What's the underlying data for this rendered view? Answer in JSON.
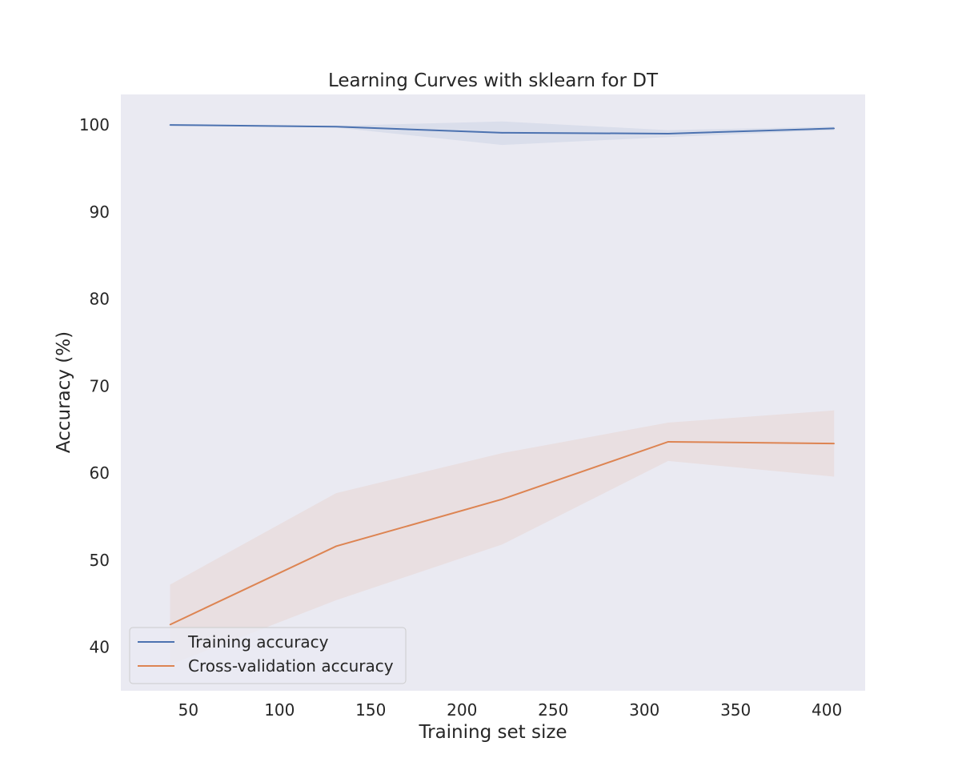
{
  "chart_data": {
    "type": "line",
    "title": "Learning Curves with sklearn for DT",
    "xlabel": "Training set size",
    "ylabel": "Accuracy (%)",
    "x": [
      40,
      131,
      222,
      313,
      404
    ],
    "xlim": [
      13,
      421
    ],
    "ylim": [
      35,
      103.5
    ],
    "xticks": [
      50,
      100,
      150,
      200,
      250,
      300,
      350,
      400
    ],
    "yticks": [
      40,
      50,
      60,
      70,
      80,
      90,
      100
    ],
    "grid": false,
    "legend_position": "lower left",
    "series": [
      {
        "name": "Training accuracy",
        "color": "#4c72b0",
        "values": [
          100.0,
          99.8,
          99.1,
          99.0,
          99.6
        ],
        "lower": [
          100.0,
          99.7,
          97.7,
          98.6,
          99.4
        ],
        "upper": [
          100.0,
          99.9,
          100.4,
          99.4,
          99.8
        ]
      },
      {
        "name": "Cross-validation accuracy",
        "color": "#dd8452",
        "values": [
          42.6,
          51.6,
          57.0,
          63.6,
          63.4
        ],
        "lower": [
          38.0,
          45.4,
          51.8,
          61.4,
          59.6
        ],
        "upper": [
          47.2,
          57.7,
          62.3,
          65.8,
          67.2
        ]
      }
    ]
  }
}
